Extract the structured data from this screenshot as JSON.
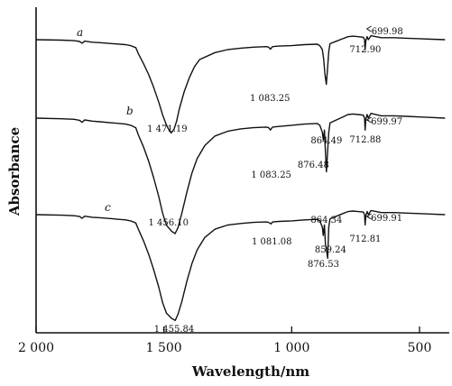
{
  "chart_data": {
    "type": "line",
    "xlabel": "Wavelength/nm",
    "ylabel": "Absorbance",
    "xlim": [
      2000,
      400
    ],
    "x_reversed": true,
    "xticks": [
      {
        "value": 2000,
        "label": "2 000"
      },
      {
        "value": 1500,
        "label": "1 500"
      },
      {
        "value": 1000,
        "label": "1 000"
      },
      {
        "value": 500,
        "label": "500"
      }
    ],
    "series": [
      {
        "name": "a",
        "x": [
          2000,
          1900,
          1850,
          1830,
          1820,
          1810,
          1780,
          1750,
          1700,
          1650,
          1630,
          1610,
          1600,
          1580,
          1560,
          1540,
          1520,
          1505,
          1490,
          1480,
          1471.19,
          1460,
          1450,
          1440,
          1420,
          1400,
          1380,
          1360,
          1300,
          1250,
          1200,
          1150,
          1100,
          1090,
          1083.25,
          1075,
          1050,
          1000,
          950,
          900,
          890,
          880,
          875,
          870,
          864.49,
          860,
          855,
          850,
          830,
          800,
          780,
          760,
          740,
          720,
          715,
          712.9,
          710,
          705,
          699.98,
          690,
          650,
          600,
          550,
          500,
          450,
          400
        ],
        "y": [
          0.0,
          0.005,
          0.01,
          0.018,
          0.035,
          0.015,
          0.025,
          0.03,
          0.04,
          0.05,
          0.06,
          0.08,
          0.14,
          0.24,
          0.35,
          0.48,
          0.63,
          0.76,
          0.86,
          0.91,
          0.94,
          0.9,
          0.82,
          0.7,
          0.52,
          0.38,
          0.27,
          0.2,
          0.13,
          0.1,
          0.085,
          0.075,
          0.07,
          0.075,
          0.095,
          0.07,
          0.065,
          0.06,
          0.05,
          0.045,
          0.06,
          0.1,
          0.2,
          0.35,
          0.45,
          0.3,
          0.12,
          0.04,
          0.02,
          -0.01,
          -0.03,
          -0.035,
          -0.03,
          -0.025,
          0.0,
          0.1,
          0.01,
          -0.03,
          0.0,
          -0.04,
          -0.02,
          -0.02,
          -0.015,
          -0.01,
          -0.005,
          0.0
        ],
        "annotations": [
          {
            "x": 1471.19,
            "label": "1 471.19"
          },
          {
            "x": 1083.25,
            "label": "1 083.25"
          },
          {
            "x": 864.49,
            "label": "864.49"
          },
          {
            "x": 712.9,
            "label": "712.90"
          },
          {
            "x": 699.98,
            "label": "699.98"
          }
        ]
      },
      {
        "name": "b",
        "x": [
          2000,
          1900,
          1850,
          1830,
          1820,
          1810,
          1780,
          1750,
          1700,
          1650,
          1630,
          1610,
          1600,
          1580,
          1560,
          1540,
          1520,
          1505,
          1490,
          1470,
          1456.1,
          1445,
          1430,
          1410,
          1390,
          1370,
          1340,
          1300,
          1250,
          1200,
          1150,
          1100,
          1090,
          1083.25,
          1075,
          1050,
          1000,
          950,
          900,
          890,
          880,
          876.48,
          872,
          868,
          864.34,
          860,
          855,
          850,
          830,
          800,
          780,
          760,
          740,
          720,
          715,
          712.88,
          710,
          705,
          699.97,
          690,
          650,
          600,
          550,
          500,
          450,
          400
        ],
        "y": [
          0.0,
          0.005,
          0.01,
          0.018,
          0.035,
          0.015,
          0.025,
          0.03,
          0.04,
          0.05,
          0.06,
          0.08,
          0.14,
          0.24,
          0.36,
          0.5,
          0.66,
          0.8,
          0.9,
          0.95,
          0.97,
          0.92,
          0.8,
          0.62,
          0.46,
          0.34,
          0.23,
          0.15,
          0.11,
          0.09,
          0.08,
          0.075,
          0.08,
          0.1,
          0.075,
          0.07,
          0.06,
          0.05,
          0.045,
          0.06,
          0.12,
          0.18,
          0.1,
          0.28,
          0.45,
          0.3,
          0.12,
          0.04,
          0.02,
          -0.01,
          -0.03,
          -0.035,
          -0.03,
          -0.025,
          0.0,
          0.1,
          0.01,
          -0.03,
          0.0,
          -0.04,
          -0.02,
          -0.02,
          -0.015,
          -0.01,
          -0.005,
          0.0
        ],
        "annotations": [
          {
            "x": 1456.1,
            "label": "1 456.10"
          },
          {
            "x": 1083.25,
            "label": "1 083.25"
          },
          {
            "x": 876.48,
            "label": "876.48"
          },
          {
            "x": 864.34,
            "label": "864.34"
          },
          {
            "x": 712.88,
            "label": "712.88"
          },
          {
            "x": 699.97,
            "label": "699.97"
          }
        ]
      },
      {
        "name": "c",
        "x": [
          2000,
          1900,
          1850,
          1830,
          1820,
          1810,
          1780,
          1750,
          1700,
          1650,
          1630,
          1610,
          1600,
          1580,
          1560,
          1540,
          1520,
          1505,
          1490,
          1470,
          1455.84,
          1445,
          1430,
          1410,
          1390,
          1370,
          1340,
          1300,
          1250,
          1200,
          1150,
          1100,
          1090,
          1081.08,
          1075,
          1050,
          1000,
          950,
          900,
          890,
          880,
          876.53,
          872,
          868,
          859.24,
          855,
          850,
          830,
          800,
          780,
          760,
          740,
          720,
          715,
          712.81,
          710,
          705,
          699.91,
          690,
          650,
          600,
          550,
          500,
          450,
          400
        ],
        "y": [
          0.0,
          0.005,
          0.01,
          0.018,
          0.035,
          0.015,
          0.025,
          0.03,
          0.04,
          0.05,
          0.06,
          0.08,
          0.14,
          0.25,
          0.38,
          0.53,
          0.7,
          0.85,
          0.95,
          1.0,
          1.02,
          0.96,
          0.84,
          0.64,
          0.47,
          0.34,
          0.22,
          0.14,
          0.1,
          0.085,
          0.075,
          0.07,
          0.075,
          0.09,
          0.07,
          0.065,
          0.06,
          0.05,
          0.045,
          0.06,
          0.12,
          0.2,
          0.1,
          0.28,
          0.42,
          0.12,
          0.04,
          0.02,
          -0.01,
          -0.03,
          -0.035,
          -0.03,
          -0.025,
          0.0,
          0.1,
          0.01,
          -0.03,
          0.0,
          -0.04,
          -0.02,
          -0.02,
          -0.015,
          -0.01,
          -0.005,
          0.0
        ],
        "annotations": [
          {
            "x": 1455.84,
            "label": "1 455.84"
          },
          {
            "x": 1081.08,
            "label": "1 081.08"
          },
          {
            "x": 876.53,
            "label": "876.53"
          },
          {
            "x": 859.24,
            "label": "859.24"
          },
          {
            "x": 712.81,
            "label": "712.81"
          },
          {
            "x": 699.91,
            "label": "699.91"
          }
        ]
      }
    ]
  }
}
